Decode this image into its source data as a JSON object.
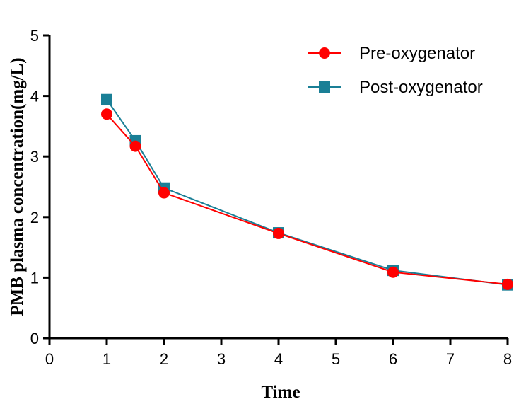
{
  "chart_data": {
    "type": "line",
    "title": "",
    "xlabel": "Time",
    "ylabel": "PMB plasma concentration(mg/L)",
    "xlim": [
      0,
      8
    ],
    "ylim": [
      0,
      5
    ],
    "xticks": [
      "0",
      "1",
      "2",
      "3",
      "4",
      "5",
      "6",
      "7",
      "8"
    ],
    "yticks": [
      "0",
      "1",
      "2",
      "3",
      "4",
      "5"
    ],
    "grid": false,
    "legend_position": "top-right",
    "series": [
      {
        "name": "Pre-oxygenator",
        "color": "#ff0000",
        "marker": "circle",
        "x": [
          1,
          1.5,
          2,
          4,
          6,
          8
        ],
        "y": [
          3.7,
          3.17,
          2.4,
          1.73,
          1.09,
          0.89
        ]
      },
      {
        "name": "Post-oxygenator",
        "color": "#1a7f96",
        "marker": "square",
        "x": [
          1,
          1.5,
          2,
          4,
          6,
          8
        ],
        "y": [
          3.94,
          3.26,
          2.48,
          1.74,
          1.12,
          0.88
        ]
      }
    ]
  }
}
